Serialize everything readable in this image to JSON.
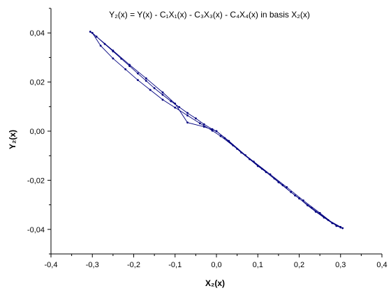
{
  "chart_data": {
    "type": "scatter",
    "title": "Y₂(x) = Y(x) - C₁X₁(x) - C₃X₃(x) - C₄X₄(x) in basis  X₂(x)",
    "xlabel": "X₂(x)",
    "ylabel": "Y₂(x)",
    "xlim": [
      -0.4,
      0.4
    ],
    "ylim": [
      -0.05,
      0.05
    ],
    "x_ticks": [
      -0.4,
      -0.3,
      -0.2,
      -0.1,
      0.0,
      0.1,
      0.2,
      0.3,
      0.4
    ],
    "x_tick_labels": [
      "-0,4",
      "-0,3",
      "-0,2",
      "-0,1",
      "0,0",
      "0,1",
      "0,2",
      "0,3",
      "0,4"
    ],
    "y_ticks": [
      0.04,
      0.02,
      0.0,
      -0.02,
      -0.04
    ],
    "y_tick_labels": [
      "0,04",
      "0,02",
      "0,00",
      "-0,02",
      "-0,04"
    ],
    "grid": false,
    "legend": "none",
    "series": [
      {
        "color": "#00007f",
        "marker": "dot",
        "line": true,
        "x": [
          -0.305,
          -0.29,
          -0.27,
          -0.25,
          -0.23,
          -0.21,
          -0.19,
          -0.17,
          -0.15,
          -0.13,
          -0.11,
          -0.09,
          -0.07,
          -0.05,
          -0.03,
          -0.01,
          0.0,
          0.02,
          0.04,
          0.06,
          0.08,
          0.1,
          0.12,
          0.14,
          0.16,
          0.18,
          0.2,
          0.22,
          0.24,
          0.26,
          0.28,
          0.3,
          0.305,
          0.29,
          0.25,
          0.21,
          0.17,
          0.13,
          0.09,
          0.05,
          0.01,
          -0.01,
          -0.04,
          -0.07,
          -0.1,
          -0.13,
          -0.16,
          -0.19,
          -0.22,
          -0.25,
          -0.28,
          -0.3,
          -0.29,
          -0.25,
          -0.21,
          -0.17,
          -0.13,
          -0.1,
          -0.07,
          -0.03,
          0.0,
          0.03,
          0.07,
          0.11,
          0.15,
          0.19,
          0.23,
          0.27,
          0.3
        ],
        "y": [
          0.0405,
          0.0385,
          0.0355,
          0.0325,
          0.0295,
          0.0265,
          0.0235,
          0.0205,
          0.0175,
          0.0148,
          0.0122,
          0.0098,
          0.0074,
          0.0052,
          0.0028,
          0.0008,
          0.0,
          -0.0028,
          -0.0058,
          -0.0087,
          -0.0114,
          -0.0142,
          -0.0167,
          -0.0193,
          -0.022,
          -0.0248,
          -0.0274,
          -0.0302,
          -0.0328,
          -0.0352,
          -0.0375,
          -0.0392,
          -0.0395,
          -0.0386,
          -0.0333,
          -0.0282,
          -0.0228,
          -0.0176,
          -0.0124,
          -0.0072,
          -0.002,
          0.0002,
          0.0032,
          0.0064,
          0.0096,
          0.0128,
          0.0168,
          0.0208,
          0.0252,
          0.0296,
          0.0348,
          0.04,
          0.0385,
          0.0328,
          0.027,
          0.0215,
          0.0158,
          0.0112,
          0.0035,
          0.0018,
          0.0,
          -0.004,
          -0.0098,
          -0.0153,
          -0.0208,
          -0.0262,
          -0.0312,
          -0.0362,
          -0.039
        ]
      }
    ]
  }
}
